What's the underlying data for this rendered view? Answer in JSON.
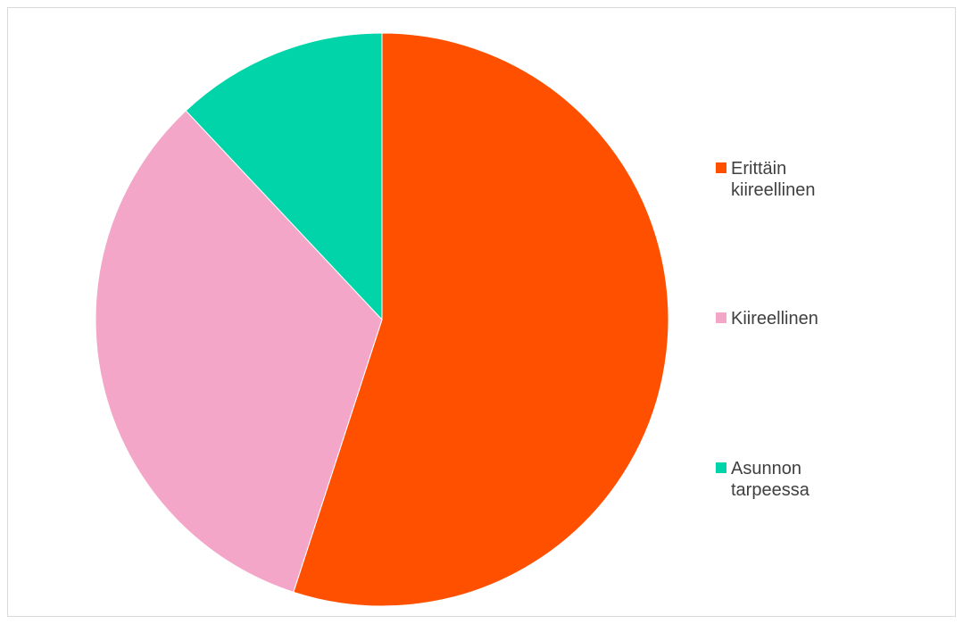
{
  "chart_data": {
    "type": "pie",
    "title": "",
    "categories": [
      "Erittäin kiireellinen",
      "Kiireellinen",
      "Asunnon tarpeessa"
    ],
    "values": [
      55,
      33,
      12
    ],
    "colors": [
      "#FF5000",
      "#F4A6C8",
      "#00D4A8"
    ],
    "start_angle_deg": 0,
    "direction": "clockwise",
    "legend_position": "right",
    "grid": false
  }
}
